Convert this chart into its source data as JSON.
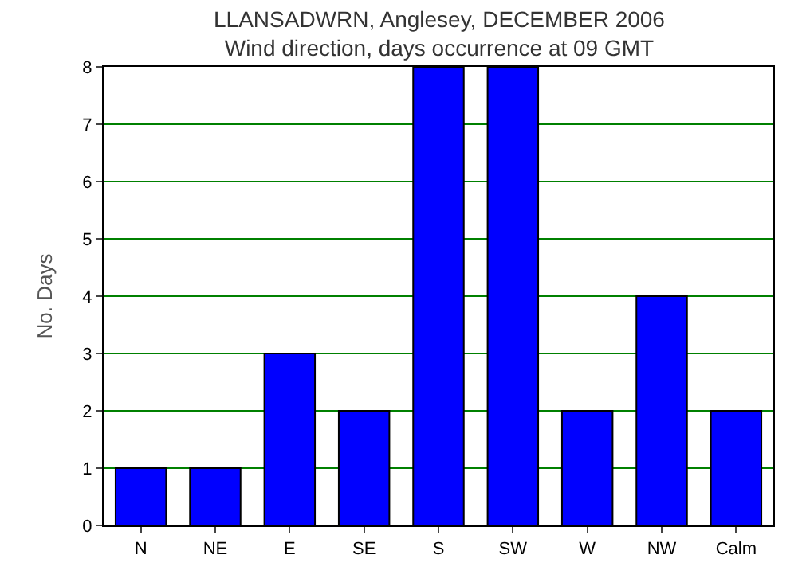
{
  "chart_data": {
    "type": "bar",
    "title": "LLANSADWRN, Anglesey, DECEMBER 2006",
    "subtitle": "Wind direction, days occurrence at 09 GMT",
    "ylabel": "No. Days",
    "categories": [
      "N",
      "NE",
      "E",
      "SE",
      "S",
      "SW",
      "W",
      "NW",
      "Calm"
    ],
    "values": [
      1,
      1,
      3,
      2,
      8,
      8,
      2,
      4,
      2
    ],
    "color": "#0000ff",
    "ylim": [
      0,
      8
    ],
    "yticks": [
      0,
      1,
      2,
      3,
      4,
      5,
      6,
      7,
      8
    ],
    "grid": "y"
  }
}
